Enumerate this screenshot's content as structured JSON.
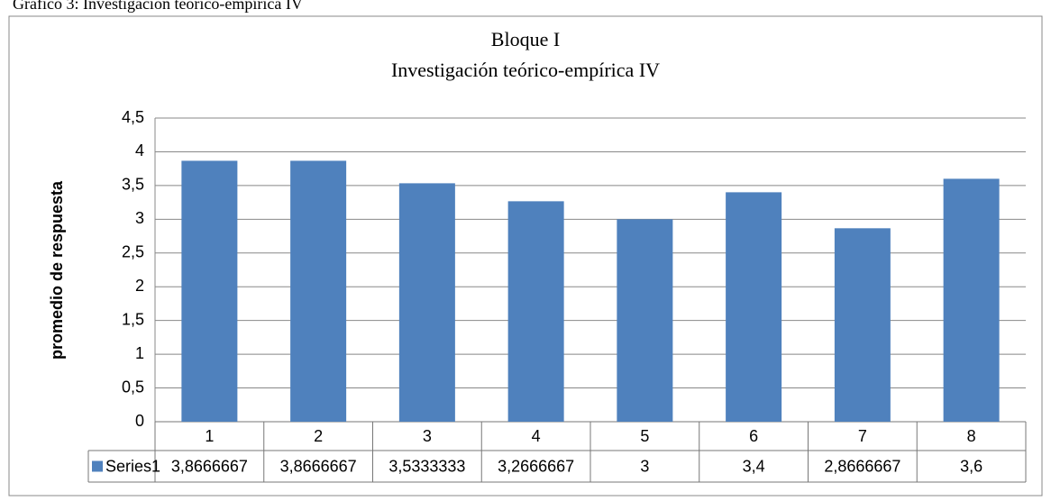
{
  "caption": "Gráfico 3: Investigación teórico-empírica IV",
  "chart_data": {
    "type": "bar",
    "title": "Bloque I",
    "subtitle": "Investigación teórico-empírica IV",
    "y_label": "promedio de respuesta",
    "categories": [
      "1",
      "2",
      "3",
      "4",
      "5",
      "6",
      "7",
      "8"
    ],
    "series": [
      {
        "name": "Series1",
        "color": "#4f81bd",
        "values": [
          3.8666667,
          3.8666667,
          3.5333333,
          3.2666667,
          3,
          3.4,
          2.8666667,
          3.6
        ],
        "value_labels": [
          "3,8666667",
          "3,8666667",
          "3,5333333",
          "3,2666667",
          "3",
          "3,4",
          "2,8666667",
          "3,6"
        ]
      }
    ],
    "ylim": [
      0,
      4.5
    ],
    "yticks": [
      0,
      {
        "value": 0.5,
        "label": "0,5"
      },
      1,
      {
        "value": 1.5,
        "label": "1,5"
      },
      2,
      {
        "value": 2.5,
        "label": "2,5"
      },
      3,
      {
        "value": 3.5,
        "label": "3,5"
      },
      4,
      {
        "value": 4.5,
        "label": "4,5"
      }
    ],
    "grid": true
  }
}
